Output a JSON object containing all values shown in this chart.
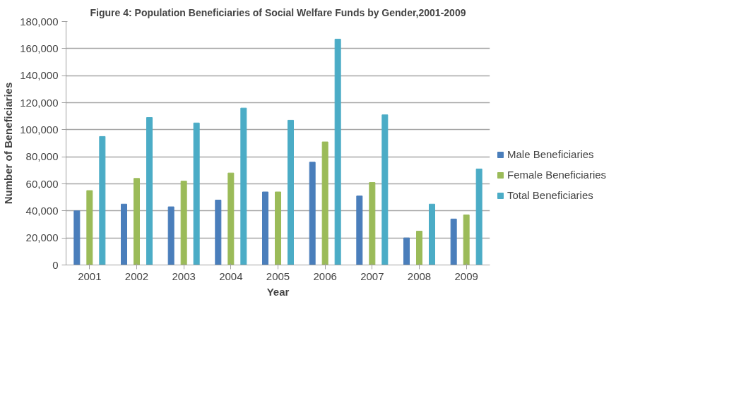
{
  "chart_data": {
    "type": "bar",
    "title": "Figure 4: Population Beneficiaries of Social Welfare Funds by Gender,2001-2009",
    "xlabel": "Year",
    "ylabel": "Number of Beneficiaries",
    "categories": [
      "2001",
      "2002",
      "2003",
      "2004",
      "2005",
      "2006",
      "2007",
      "2008",
      "2009"
    ],
    "series": [
      {
        "name": "Male Beneficiaries",
        "color": "#4a7ebb",
        "values": [
          40000,
          45000,
          43000,
          48000,
          54000,
          76000,
          51000,
          20000,
          34000
        ]
      },
      {
        "name": "Female Beneficiaries",
        "color": "#9bbb59",
        "values": [
          55000,
          64000,
          62000,
          68000,
          54000,
          91000,
          61000,
          25000,
          37000
        ]
      },
      {
        "name": "Total Beneficiaries",
        "color": "#4bacc6",
        "values": [
          95000,
          109000,
          105000,
          116000,
          107000,
          167000,
          111000,
          45000,
          71000
        ]
      }
    ],
    "ylim": [
      0,
      180000
    ],
    "yticks": [
      {
        "value": 0,
        "label": "0"
      },
      {
        "value": 20000,
        "label": "20,000"
      },
      {
        "value": 40000,
        "label": "40,000"
      },
      {
        "value": 60000,
        "label": "60,000"
      },
      {
        "value": 80000,
        "label": "80,000"
      },
      {
        "value": 100000,
        "label": "100,000"
      },
      {
        "value": 120000,
        "label": "120,000"
      },
      {
        "value": 140000,
        "label": "140,000"
      },
      {
        "value": 160000,
        "label": "160,000"
      },
      {
        "value": 180000,
        "label": "180,000"
      }
    ],
    "grid": "y",
    "legend": "right"
  }
}
